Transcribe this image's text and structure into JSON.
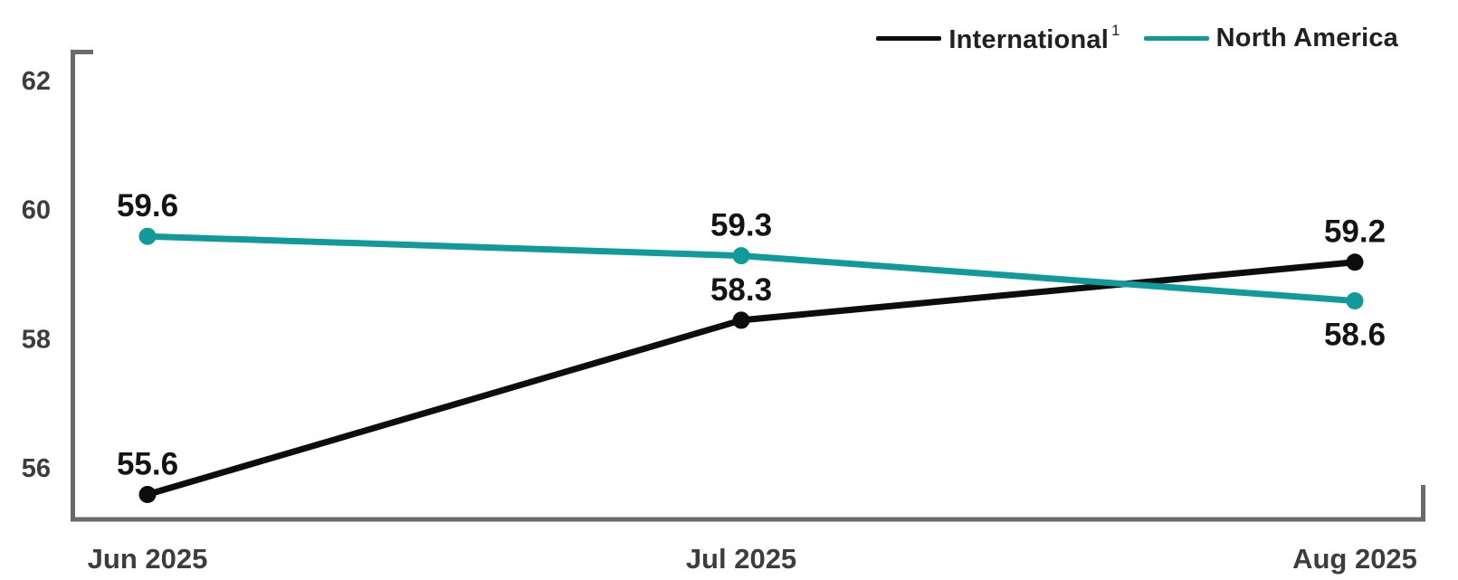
{
  "chart_data": {
    "type": "line",
    "title": "",
    "xlabel": "",
    "ylabel": "",
    "categories": [
      "Jun 2025",
      "Jul 2025",
      "Aug 2025"
    ],
    "series": [
      {
        "name": "International",
        "superscript": "1",
        "color": "#0d0d0d",
        "values": [
          55.6,
          58.3,
          59.2
        ],
        "value_labels": [
          "55.6",
          "58.3",
          "59.2"
        ],
        "label_sides": [
          "above",
          "above",
          "above"
        ]
      },
      {
        "name": "North America",
        "superscript": "",
        "color": "#119a9a",
        "values": [
          59.6,
          59.3,
          58.6
        ],
        "value_labels": [
          "59.6",
          "59.3",
          "58.6"
        ],
        "label_sides": [
          "above",
          "above",
          "below"
        ]
      }
    ],
    "yticks": [
      56,
      58,
      60,
      62
    ],
    "ytick_labels": [
      "56",
      "58",
      "60",
      "62"
    ],
    "ylim": [
      55.2,
      62.5
    ],
    "grid": false,
    "legend_position": "top-right",
    "colors": {
      "axis": "#6a6a6a",
      "tick_label": "#3d3d3f",
      "x_label": "#3d3d3f",
      "value_label": "#141414",
      "background": "#ffffff"
    }
  }
}
